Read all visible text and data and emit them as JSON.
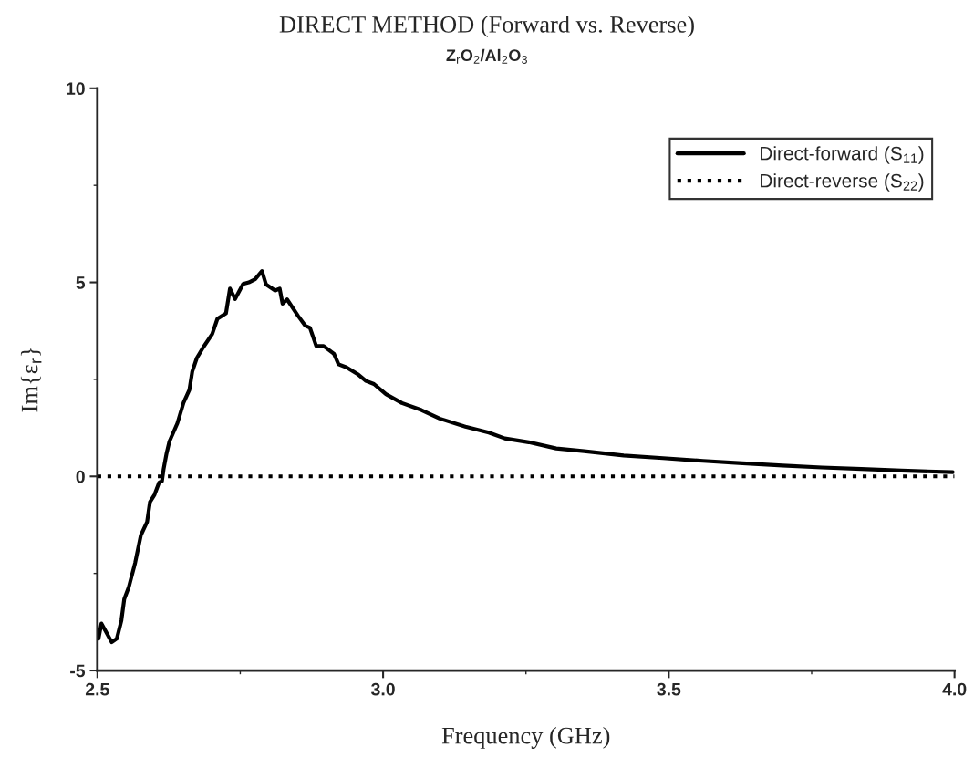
{
  "chart_data": {
    "type": "line",
    "title": "DIRECT METHOD (Forward vs. Reverse)",
    "subtitle": "Z$_{r}$O$_{2}$/Al$_{2}$O$_{3}$",
    "xlabel": "Frequency (GHz)",
    "ylabel": "Im{ε$_{r}$}",
    "xlim": [
      2.5,
      4.0
    ],
    "ylim": [
      -5,
      10
    ],
    "xticks": [
      {
        "value": 2.5,
        "label": "2.5"
      },
      {
        "value": 3.0,
        "label": "3.0"
      },
      {
        "value": 3.5,
        "label": "3.5"
      },
      {
        "value": 4.0,
        "label": "4.0"
      }
    ],
    "yticks": [
      -5,
      0,
      5,
      10
    ],
    "grid": false,
    "legend": "top right",
    "marker": "none",
    "series": [
      {
        "name": "Direct-forward (S$_{11}$)",
        "color": "#000000",
        "line_style": "solid",
        "x": [
          2.502,
          2.507,
          2.525,
          2.534,
          2.542,
          2.547,
          2.555,
          2.566,
          2.576,
          2.587,
          2.592,
          2.6,
          2.608,
          2.613,
          2.616,
          2.621,
          2.626,
          2.64,
          2.651,
          2.661,
          2.666,
          2.674,
          2.685,
          2.701,
          2.71,
          2.725,
          2.732,
          2.741,
          2.755,
          2.765,
          2.776,
          2.788,
          2.795,
          2.811,
          2.819,
          2.824,
          2.832,
          2.851,
          2.864,
          2.872,
          2.883,
          2.896,
          2.914,
          2.922,
          2.936,
          2.957,
          2.97,
          2.984,
          3.005,
          3.033,
          3.067,
          3.099,
          3.144,
          3.185,
          3.213,
          3.255,
          3.303,
          3.352,
          3.421,
          3.49,
          3.56,
          3.629,
          3.699,
          3.768,
          3.837,
          3.907,
          3.997
        ],
        "values": [
          -4.18,
          -3.79,
          -4.27,
          -4.18,
          -3.71,
          -3.16,
          -2.85,
          -2.23,
          -1.52,
          -1.17,
          -0.66,
          -0.47,
          -0.16,
          -0.12,
          0.2,
          0.59,
          0.9,
          1.37,
          1.91,
          2.23,
          2.7,
          3.05,
          3.32,
          3.67,
          4.06,
          4.2,
          4.84,
          4.57,
          4.96,
          5.0,
          5.08,
          5.29,
          4.95,
          4.79,
          4.84,
          4.45,
          4.56,
          4.14,
          3.88,
          3.83,
          3.36,
          3.36,
          3.16,
          2.89,
          2.81,
          2.62,
          2.46,
          2.38,
          2.12,
          1.89,
          1.71,
          1.49,
          1.28,
          1.13,
          0.98,
          0.88,
          0.72,
          0.65,
          0.54,
          0.47,
          0.4,
          0.34,
          0.28,
          0.23,
          0.19,
          0.15,
          0.11
        ]
      },
      {
        "name": "Direct-reverse (S$_{22}$)",
        "color": "#000000",
        "line_style": "dotted",
        "x": [
          2.5,
          3.0,
          3.5,
          4.0
        ],
        "values": [
          0.0,
          0.0,
          0.0,
          0.0
        ]
      }
    ]
  }
}
